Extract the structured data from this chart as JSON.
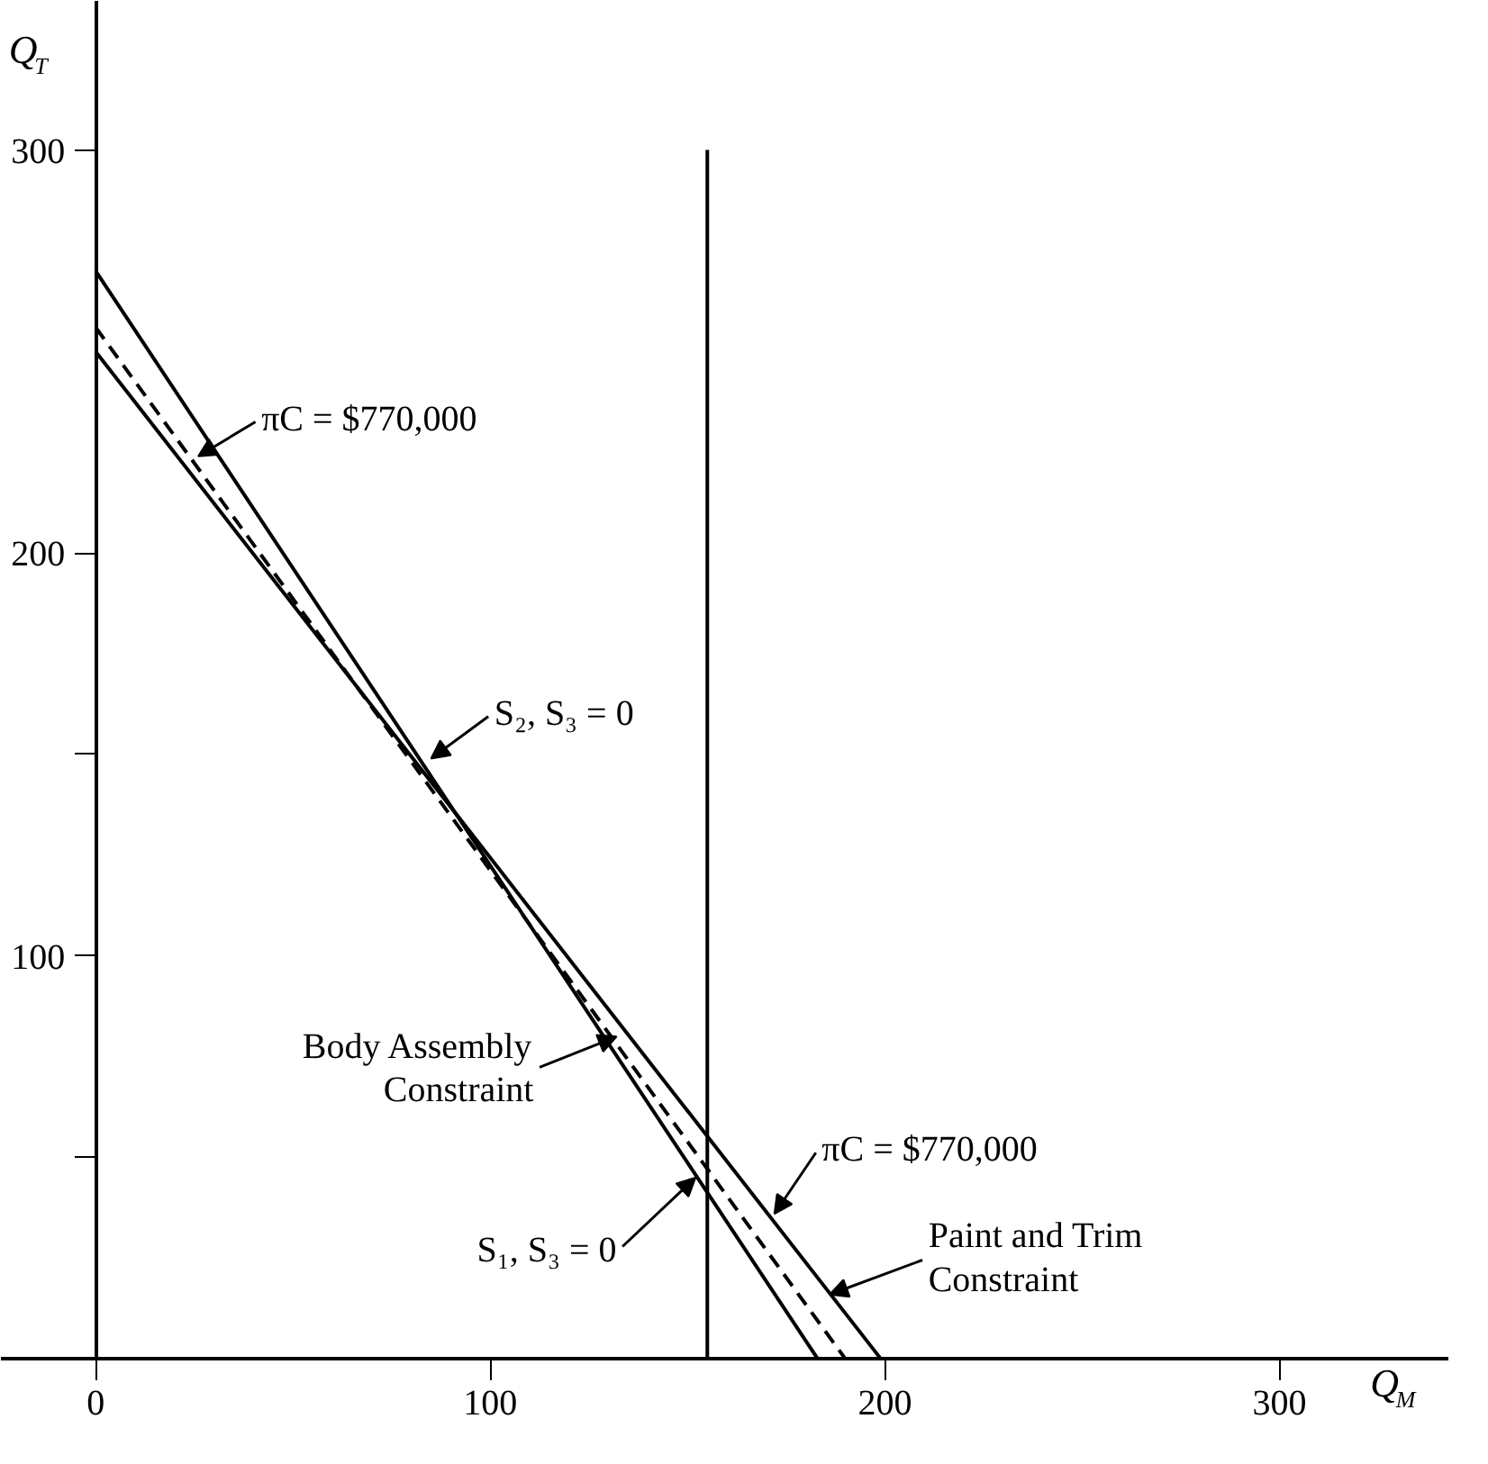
{
  "chart_data": {
    "type": "line",
    "xlabel": "Q$_{M}$",
    "ylabel": "Q$_{T}$",
    "xlim": [
      -24,
      343
    ],
    "ylim": [
      -16,
      337
    ],
    "xticks": [
      0,
      100,
      200,
      300
    ],
    "yticks": [
      {
        "value": 50,
        "label": null
      },
      100,
      {
        "value": 150,
        "label": null
      },
      200,
      300
    ],
    "marker": "none",
    "series": [
      {
        "x": [
          0,
          183
        ],
        "values": [
          270,
          0
        ],
        "color": "#000000",
        "line_style": "solid"
      },
      {
        "x": [
          0,
          199
        ],
        "values": [
          250,
          0
        ],
        "color": "#000000",
        "line_style": "solid"
      },
      {
        "x": [
          0,
          190
        ],
        "values": [
          256,
          0
        ],
        "color": "#000000",
        "line_style": "dashed"
      },
      {
        "x": [
          155,
          155
        ],
        "values": [
          0,
          300
        ],
        "color": "#000000",
        "line_style": "solid"
      }
    ],
    "annotations": [
      {
        "text": "πC = $770,000",
        "x": 26,
        "y": 224
      },
      {
        "text": "S₂, S₃ = 0",
        "x": 85,
        "y": 149
      },
      {
        "text": "Body Assembly\nConstraint",
        "x": 132,
        "y": 80
      },
      {
        "text": "S₁, S₃ = 0",
        "x": 152,
        "y": 45
      },
      {
        "text": "πC = $770,000",
        "x": 172,
        "y": 36
      },
      {
        "text": "Paint and Trim\nConstraint",
        "x": 186,
        "y": 16
      }
    ]
  }
}
